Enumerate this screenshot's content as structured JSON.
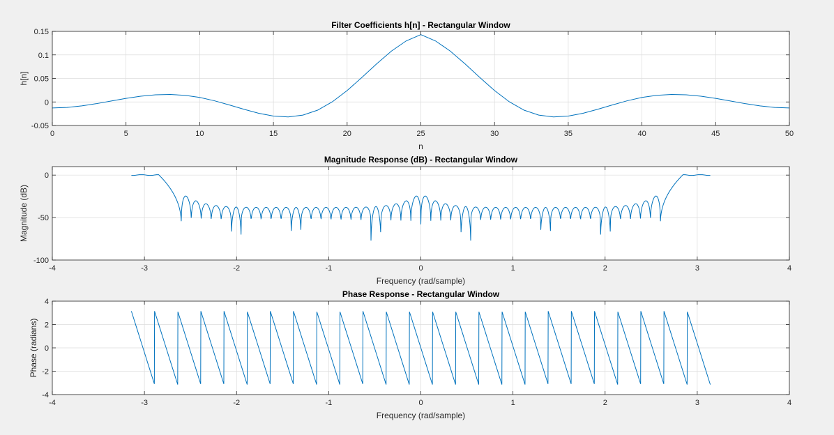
{
  "colors": {
    "line": "#0072bd",
    "grid": "#dcdcdc",
    "axes_bg": "#ffffff",
    "figure_bg": "#f0f0f0",
    "axis": "#262626"
  },
  "chart_data": [
    {
      "type": "line",
      "title": "Filter Coefficients h[n] - Rectangular Window",
      "xlabel": "n",
      "ylabel": "h[n]",
      "xlim": [
        0,
        50
      ],
      "ylim": [
        -0.05,
        0.15
      ],
      "xticks": [
        0,
        5,
        10,
        15,
        20,
        25,
        30,
        35,
        40,
        45,
        50
      ],
      "yticks": [
        -0.05,
        0,
        0.05,
        0.1,
        0.15
      ],
      "xtick_labels": [
        "0",
        "5",
        "10",
        "15",
        "20",
        "25",
        "30",
        "35",
        "40",
        "45",
        "50"
      ],
      "ytick_labels": [
        "-0.05",
        "0",
        "0.05",
        "0.1",
        "0.15"
      ],
      "grid": true,
      "series": [
        {
          "x": [
            0,
            1,
            2,
            3,
            4,
            5,
            6,
            7,
            8,
            9,
            10,
            11,
            12,
            13,
            14,
            15,
            16,
            17,
            18,
            19,
            20,
            21,
            22,
            23,
            24,
            25,
            26,
            27,
            28,
            29,
            30,
            31,
            32,
            33,
            34,
            35,
            36,
            37,
            38,
            39,
            40,
            41,
            42,
            43,
            44,
            45,
            46,
            47,
            48,
            49,
            50
          ],
          "values": [
            -0.0127,
            -0.0116,
            -0.0084,
            -0.0036,
            0.0021,
            0.0076,
            0.0122,
            0.0151,
            0.0159,
            0.0141,
            0.0096,
            0.0025,
            -0.0063,
            -0.0156,
            -0.024,
            -0.03,
            -0.0318,
            -0.028,
            -0.0174,
            0.0004,
            0.0242,
            0.052,
            0.0809,
            0.108,
            0.1296,
            0.143,
            0.1296,
            0.108,
            0.0809,
            0.052,
            0.0242,
            0.0004,
            -0.0174,
            -0.028,
            -0.0318,
            -0.03,
            -0.024,
            -0.0156,
            -0.0063,
            0.0025,
            0.0096,
            0.0141,
            0.0159,
            0.0151,
            0.0122,
            0.0076,
            0.0021,
            -0.0036,
            -0.0084,
            -0.0116,
            -0.0127
          ]
        }
      ]
    },
    {
      "type": "line",
      "title": "Magnitude Response (dB) - Rectangular Window",
      "xlabel": "Frequency (rad/sample)",
      "ylabel": "Magnitude (dB)",
      "xlim": [
        -4,
        4
      ],
      "ylim": [
        -100,
        10
      ],
      "xticks": [
        -4,
        -3,
        -2,
        -1,
        0,
        1,
        2,
        3,
        4
      ],
      "yticks": [
        -100,
        -50,
        0
      ],
      "xtick_labels": [
        "-4",
        "-3",
        "-2",
        "-1",
        "0",
        "1",
        "2",
        "3",
        "4"
      ],
      "ytick_labels": [
        "-100",
        "-50",
        "0"
      ],
      "grid": true,
      "passband": {
        "w_min": -3.1416,
        "w_max": 3.1416,
        "edge": 2.6,
        "ripple_peak_db": 0.5,
        "first_sidelobe_db": -21,
        "far_sidelobe_db": -38,
        "null_count_per_side": 24,
        "null_depth_db": -58,
        "deep_nulls_db": [
          -85,
          -80,
          -90
        ]
      }
    },
    {
      "type": "line",
      "title": "Phase Response - Rectangular Window",
      "xlabel": "Frequency (rad/sample)",
      "ylabel": "Phase (radians)",
      "xlim": [
        -4,
        4
      ],
      "ylim": [
        -4,
        4
      ],
      "xticks": [
        -4,
        -3,
        -2,
        -1,
        0,
        1,
        2,
        3,
        4
      ],
      "yticks": [
        -4,
        -2,
        0,
        2,
        4
      ],
      "xtick_labels": [
        "-4",
        "-3",
        "-2",
        "-1",
        "0",
        "1",
        "2",
        "3",
        "4"
      ],
      "ytick_labels": [
        "-4",
        "-2",
        "0",
        "2",
        "4"
      ],
      "grid": true,
      "phase": {
        "w_min": -3.1416,
        "w_max": 3.1416,
        "slope": -25,
        "wrap_range": [
          -3.1416,
          3.1416
        ]
      }
    }
  ]
}
